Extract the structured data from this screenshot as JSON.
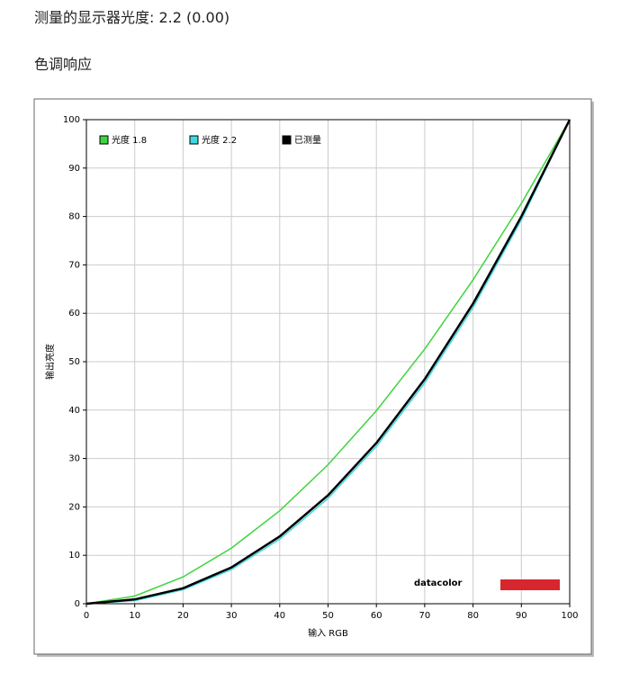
{
  "header": {
    "title": "测量的显示器光度: 2.2 (0.00)",
    "section": "色调响应"
  },
  "chart_data": {
    "type": "line",
    "x_label": "输入 RGB",
    "y_label": "输出亮度",
    "logo": "datacolor",
    "x": [
      0,
      10,
      20,
      30,
      40,
      50,
      60,
      70,
      80,
      90,
      100
    ],
    "series": [
      {
        "name": "光度 1.8",
        "color": "#3fd43f",
        "values": [
          0,
          1.58,
          5.53,
          11.48,
          19.2,
          28.72,
          39.87,
          52.61,
          66.9,
          82.68,
          100
        ]
      },
      {
        "name": "光度 2.2",
        "color": "#3fd8e0",
        "values": [
          0,
          0.63,
          2.9,
          7.07,
          13.33,
          21.76,
          32.51,
          45.63,
          61.19,
          79.29,
          100
        ]
      },
      {
        "name": "已测量",
        "color": "#000000",
        "values": [
          0,
          0.9,
          3.2,
          7.5,
          13.9,
          22.4,
          33.2,
          46.4,
          62,
          80,
          100
        ]
      }
    ],
    "xlim": [
      0,
      100
    ],
    "ylim": [
      0,
      100
    ],
    "xticks": [
      0,
      10,
      20,
      30,
      40,
      50,
      60,
      70,
      80,
      90,
      100
    ],
    "yticks": [
      0,
      10,
      20,
      30,
      40,
      50,
      60,
      70,
      80,
      90,
      100
    ],
    "grid": true,
    "legend": "top-left"
  }
}
